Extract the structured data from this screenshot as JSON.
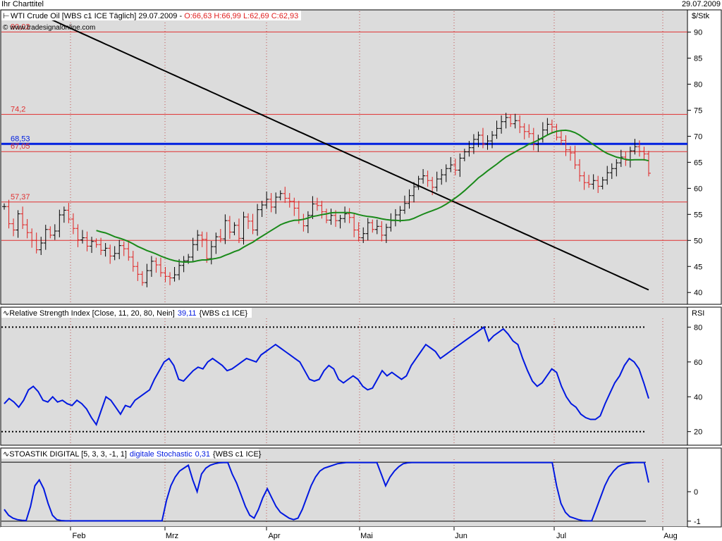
{
  "window": {
    "title": "Ihr Charttitel",
    "date": "29.07.2009"
  },
  "colors": {
    "panel_bg": "#dcdcdc",
    "grid": "#c05050",
    "price_up": "#000000",
    "price_down": "#e02020",
    "sma_long": "#000000",
    "sma_short": "#1a8a1a",
    "level_red": "#e03030",
    "level_blue": "#0020e0",
    "indicator": "#0018e0"
  },
  "chart_data": [
    {
      "type": "ohlc",
      "title": "WTI Crude Oil [WBS c1 ICE  Täglich] 29.07.2009 - O:66,63 H:66,99 L:62,69 C:62,93",
      "header": {
        "name": "WTI Crude Oil [WBS c1 ICE  Täglich] 29.07.2009",
        "sep": " - ",
        "ohlc": "O:66,63 H:66,99 L:62,69 C:62,93"
      },
      "copyright": "© www.tradesignalonline.com",
      "ylabel": "$/Stk",
      "ylim": [
        38,
        94
      ],
      "y_ticks": [
        "90",
        "85",
        "80",
        "75",
        "70",
        "65",
        "60",
        "55",
        "50",
        "45",
        "40"
      ],
      "x_ticks": [
        "Feb",
        "Mrz",
        "Apr",
        "Mai",
        "Jun",
        "Jul",
        "Aug"
      ],
      "levels": [
        {
          "label": "90,02",
          "value": 90.02,
          "color": "red"
        },
        {
          "label": "74,2",
          "value": 74.2,
          "color": "red"
        },
        {
          "label": "68,53",
          "value": 68.53,
          "color": "blue"
        },
        {
          "label": "67,05",
          "value": 67.05,
          "color": "red"
        },
        {
          "label": "57,37",
          "value": 57.37,
          "color": "red"
        },
        {
          "label": "",
          "value": 50.0,
          "color": "red"
        }
      ],
      "closes": [
        56.5,
        53.2,
        52.0,
        55.1,
        53.0,
        51.5,
        50.0,
        48.2,
        49.5,
        52.1,
        51.0,
        51.8,
        54.9,
        55.8,
        54.1,
        52.3,
        50.1,
        50.5,
        48.9,
        49.8,
        49.2,
        48.1,
        48.5,
        47.0,
        47.5,
        49.0,
        48.4,
        46.8,
        45.0,
        43.5,
        41.9,
        44.2,
        46.0,
        45.3,
        43.8,
        43.1,
        42.8,
        43.4,
        45.2,
        46.1,
        46.8,
        49.2,
        51.0,
        50.2,
        46.5,
        48.8,
        50.7,
        50.3,
        53.8,
        51.6,
        52.9,
        50.4,
        54.5,
        53.7,
        52.0,
        55.9,
        56.8,
        57.9,
        56.4,
        58.3,
        59.0,
        58.1,
        57.5,
        56.2,
        54.0,
        52.8,
        54.8,
        57.0,
        56.7,
        55.5,
        53.9,
        54.8,
        53.8,
        54.2,
        55.1,
        54.4,
        52.0,
        50.5,
        51.3,
        53.4,
        52.1,
        52.7,
        51.0,
        52.5,
        53.8,
        54.9,
        55.8,
        57.1,
        58.6,
        60.3,
        61.8,
        62.4,
        61.5,
        60.2,
        61.8,
        62.6,
        63.8,
        64.5,
        63.5,
        65.8,
        67.0,
        67.8,
        69.4,
        70.2,
        68.5,
        69.1,
        70.2,
        71.5,
        72.8,
        73.6,
        72.4,
        73.0,
        71.8,
        70.9,
        70.5,
        68.4,
        69.5,
        71.2,
        72.3,
        71.8,
        69.8,
        69.2,
        67.4,
        66.8,
        64.5,
        62.4,
        61.1,
        60.8,
        61.5,
        60.4,
        61.6,
        63.0,
        63.8,
        64.9,
        66.0,
        65.4,
        67.2,
        68.0,
        67.1,
        66.6,
        62.9
      ],
      "sma_short": [
        null,
        null,
        null,
        null,
        null,
        null,
        null,
        null,
        null,
        null,
        null,
        null,
        null,
        null,
        null,
        null,
        null,
        null,
        null,
        null,
        51.9,
        51.65,
        51.45,
        51.1,
        50.7,
        50.45,
        50.15,
        49.8,
        49.35,
        48.85,
        48.45,
        48.05,
        47.75,
        47.4,
        47.0,
        46.65,
        46.35,
        46.1,
        45.95,
        45.85,
        45.85,
        45.9,
        46.1,
        46.25,
        46.25,
        46.4,
        46.55,
        46.75,
        47.15,
        47.45,
        47.85,
        48.15,
        48.7,
        49.2,
        49.65,
        50.25,
        50.8,
        51.35,
        51.9,
        52.45,
        53.0,
        53.35,
        53.65,
        53.85,
        53.9,
        54.05,
        54.3,
        54.6,
        54.75,
        54.95,
        55.1,
        55.3,
        55.35,
        55.35,
        55.35,
        55.35,
        55.2,
        54.95,
        54.75,
        54.6,
        54.5,
        54.35,
        54.15,
        54.0,
        53.9,
        53.85,
        53.8,
        53.85,
        53.95,
        54.25,
        54.65,
        55.05,
        55.4,
        55.7,
        56.05,
        56.45,
        56.95,
        57.55,
        58.15,
        58.8,
        59.55,
        60.35,
        61.15,
        62.0,
        62.65,
        63.35,
        64.0,
        64.65,
        65.35,
        66.0,
        66.5,
        67.0,
        67.5,
        67.95,
        68.5,
        68.85,
        69.25,
        69.75,
        70.25,
        70.65,
        70.95,
        71.1,
        71.15,
        71.0,
        70.7,
        70.2,
        69.6,
        69.0,
        68.4,
        67.8,
        67.2,
        66.7,
        66.35,
        66.0,
        65.8,
        65.55,
        65.45,
        65.5,
        65.5,
        65.5,
        65.3
      ],
      "sma_long": [
        96.5,
        96.1,
        95.7,
        95.3,
        94.9,
        94.5,
        94.1,
        93.7,
        93.3,
        92.9,
        92.5,
        92.1,
        91.7,
        91.3,
        90.9,
        90.5,
        90.1,
        89.7,
        89.3,
        88.9,
        88.5,
        88.1,
        87.7,
        87.3,
        86.9,
        86.5,
        86.1,
        85.7,
        85.3,
        84.9,
        84.5,
        84.1,
        83.7,
        83.3,
        82.9,
        82.5,
        82.1,
        81.7,
        81.3,
        80.9,
        80.5,
        80.1,
        79.7,
        79.3,
        78.9,
        78.5,
        78.1,
        77.7,
        77.3,
        76.9,
        76.5,
        76.1,
        75.7,
        75.3,
        74.9,
        74.5,
        74.1,
        73.7,
        73.3,
        72.9,
        72.5,
        72.1,
        71.7,
        71.3,
        70.9,
        70.5,
        70.1,
        69.7,
        69.3,
        68.9,
        68.5,
        68.1,
        67.7,
        67.3,
        66.9,
        66.5,
        66.1,
        65.7,
        65.3,
        64.9,
        64.5,
        64.1,
        63.7,
        63.3,
        62.9,
        62.5,
        62.1,
        61.7,
        61.3,
        60.9,
        60.5,
        60.1,
        59.7,
        59.3,
        58.9,
        58.5,
        58.1,
        57.7,
        57.3,
        56.9,
        56.5,
        56.1,
        55.7,
        55.3,
        54.9,
        54.5,
        54.1,
        53.7,
        53.3,
        52.9,
        52.5,
        52.1,
        51.7,
        51.3,
        50.9,
        50.5,
        50.1,
        49.7,
        49.3,
        48.9,
        48.5,
        48.1,
        47.7,
        47.3,
        46.9,
        46.5,
        46.1,
        45.7,
        45.3,
        44.9,
        44.5,
        44.1,
        43.7,
        43.3,
        42.9,
        42.5,
        42.1,
        41.7,
        41.3,
        40.9,
        40.5
      ]
    },
    {
      "type": "line",
      "title": "Relative Strength Index [Close, 11, 20, 80, Nein]",
      "header": {
        "name": "Relative Strength Index [Close, 11, 20, 80, Nein]",
        "value": "39,11",
        "source": "{WBS c1 ICE}"
      },
      "ylabel": "RSI",
      "ylim": [
        13,
        85
      ],
      "y_ticks": [
        "80",
        "60",
        "40",
        "20"
      ],
      "levels": [
        80,
        20
      ],
      "values": [
        36,
        39,
        37,
        34,
        38,
        44,
        46,
        43,
        38,
        37,
        40,
        37,
        38,
        36,
        35,
        38,
        36,
        33,
        28,
        24,
        32,
        40,
        38,
        34,
        30,
        35,
        34,
        38,
        40,
        42,
        44,
        50,
        55,
        60,
        62,
        58,
        50,
        49,
        52,
        55,
        57,
        56,
        60,
        62,
        60,
        58,
        55,
        56,
        58,
        60,
        62,
        61,
        60,
        64,
        66,
        68,
        70,
        68,
        66,
        64,
        62,
        60,
        55,
        50,
        49,
        50,
        55,
        58,
        56,
        50,
        48,
        50,
        52,
        50,
        46,
        44,
        45,
        50,
        55,
        52,
        54,
        52,
        50,
        52,
        58,
        62,
        66,
        70,
        68,
        66,
        62,
        64,
        66,
        68,
        70,
        72,
        74,
        76,
        78,
        80,
        72,
        75,
        77,
        79,
        76,
        72,
        70,
        62,
        55,
        49,
        46,
        48,
        52,
        56,
        54,
        46,
        40,
        36,
        34,
        30,
        28,
        27,
        27,
        29,
        36,
        42,
        48,
        52,
        58,
        62,
        60,
        56,
        48,
        39
      ]
    },
    {
      "type": "line",
      "title": "STOASTIK DIGITAL [5, 3, 3, -1, 1]",
      "header": {
        "name": "STOASTIK DIGITAL [5, 3, 3, -1, 1]",
        "series_name": "digitale Stochastic",
        "value": "0,31",
        "source": "{WBS c1 ICE}"
      },
      "ylim": [
        -1.1,
        1.1
      ],
      "y_ticks": [
        "0",
        "-1"
      ],
      "levels": [
        1,
        -1
      ],
      "values": [
        -0.6,
        -0.8,
        -0.9,
        -0.95,
        -0.97,
        -0.98,
        -0.5,
        0.2,
        0.4,
        0.1,
        -0.4,
        -0.8,
        -0.95,
        -0.98,
        -0.99,
        -0.99,
        -0.99,
        -0.99,
        -0.99,
        -0.99,
        -0.99,
        -0.99,
        -0.99,
        -0.99,
        -0.99,
        -0.99,
        -0.99,
        -0.99,
        -0.99,
        -0.99,
        -0.99,
        -0.99,
        -0.99,
        -0.99,
        -0.99,
        -0.99,
        -0.99,
        -0.3,
        0.2,
        0.5,
        0.7,
        0.8,
        0.9,
        0.4,
        0.0,
        0.6,
        0.8,
        0.9,
        0.95,
        0.98,
        0.99,
        0.99,
        0.6,
        0.3,
        -0.1,
        -0.5,
        -0.8,
        -0.9,
        -0.6,
        -0.2,
        0.1,
        -0.2,
        -0.5,
        -0.7,
        -0.8,
        -0.9,
        -0.95,
        -0.9,
        -0.6,
        -0.2,
        0.2,
        0.5,
        0.7,
        0.8,
        0.85,
        0.9,
        0.95,
        0.97,
        0.99,
        0.99,
        0.99,
        0.99,
        0.99,
        0.99,
        0.99,
        0.99,
        0.6,
        0.2,
        0.5,
        0.7,
        0.85,
        0.95,
        0.98,
        0.99,
        0.99,
        0.99,
        0.99,
        0.99,
        0.99,
        0.99,
        0.99,
        0.99,
        0.99,
        0.99,
        0.99,
        0.99,
        0.99,
        0.99,
        0.99,
        0.99,
        0.99,
        0.99,
        0.99,
        0.99,
        0.99,
        0.99,
        0.99,
        0.99,
        0.99,
        0.99,
        0.99,
        0.99,
        0.99,
        0.99,
        0.99,
        0.99,
        0.2,
        -0.4,
        -0.7,
        -0.85,
        -0.9,
        -0.95,
        -0.98,
        -0.99,
        -0.99,
        -0.6,
        -0.2,
        0.2,
        0.5,
        0.7,
        0.85,
        0.92,
        0.96,
        0.98,
        0.99,
        0.99,
        0.99,
        0.31
      ]
    }
  ]
}
